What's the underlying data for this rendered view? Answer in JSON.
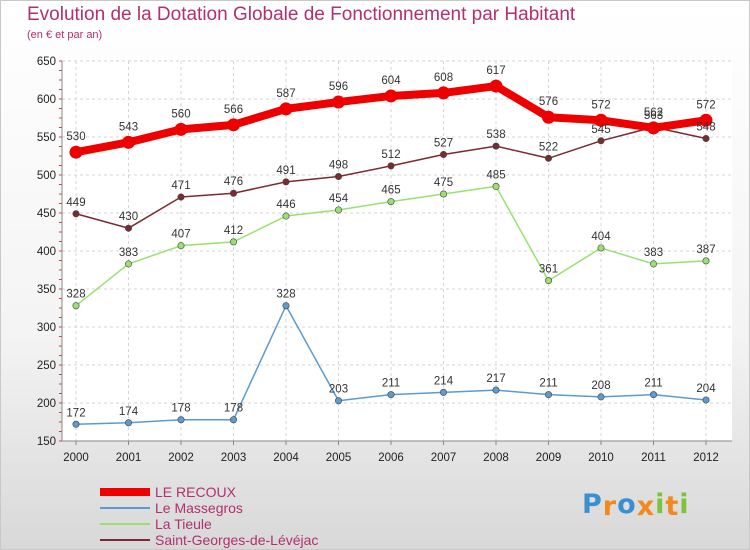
{
  "header": {
    "title": "Evolution de la Dotation Globale de Fonctionnement par Habitant",
    "subtitle": "(en € et par an)"
  },
  "chart_data": {
    "type": "line",
    "title": "Evolution de la Dotation Globale de Fonctionnement par Habitant",
    "subtitle": "(en € et par an)",
    "xlabel": "",
    "ylabel": "",
    "ylim": [
      150,
      650
    ],
    "yticks": [
      150,
      200,
      250,
      300,
      350,
      400,
      450,
      500,
      550,
      600,
      650
    ],
    "categories": [
      "2000",
      "2001",
      "2002",
      "2003",
      "2004",
      "2005",
      "2006",
      "2007",
      "2008",
      "2009",
      "2010",
      "2011",
      "2012"
    ],
    "grid": true,
    "legend_position": "bottom-left",
    "series": [
      {
        "name": "LE RECOUX",
        "color": "#ee0000",
        "values": [
          530,
          543,
          560,
          566,
          587,
          596,
          604,
          608,
          617,
          576,
          572,
          562,
          572
        ]
      },
      {
        "name": "Le Massegros",
        "color": "#5b9bcf",
        "values": [
          172,
          174,
          178,
          178,
          328,
          203,
          211,
          214,
          217,
          211,
          208,
          211,
          204
        ]
      },
      {
        "name": "La Tieule",
        "color": "#99e070",
        "values": [
          328,
          383,
          407,
          412,
          446,
          454,
          465,
          475,
          485,
          361,
          404,
          383,
          387
        ]
      },
      {
        "name": "Saint-Georges-de-Lévéjac",
        "color": "#7a2a30",
        "values": [
          449,
          430,
          471,
          476,
          491,
          498,
          512,
          527,
          538,
          522,
          545,
          563,
          548
        ]
      }
    ]
  },
  "logo": {
    "letters": [
      "P",
      "r",
      "o",
      "x",
      "i",
      "t",
      "i"
    ],
    "colors": [
      "#3a8fd0",
      "#f08a1c",
      "#3a8fd0",
      "#f08a1c",
      "#7cc23a",
      "#f08a1c",
      "#7cc23a"
    ]
  }
}
